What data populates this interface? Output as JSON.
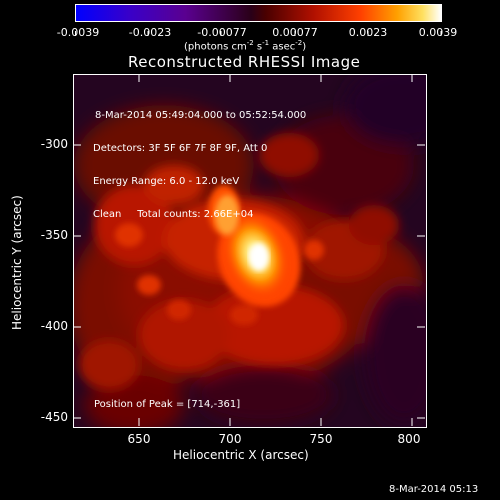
{
  "colorbar": {
    "ticks": [
      "-0.0039",
      "-0.0023",
      "-0.00077",
      "0.00077",
      "0.0023",
      "0.0039"
    ],
    "units_prefix": "(photons cm",
    "units_e1": "-2",
    "units_mid": " s",
    "units_e2": "-1",
    "units_mid2": " asec",
    "units_e3": "-2",
    "units_suffix": ")"
  },
  "title": "Reconstructed RHESSI Image",
  "info": {
    "line1": "8-Mar-2014 05:49:04.000 to 05:52:54.000",
    "line2": "Detectors: 3F 5F 6F 7F 8F 9F, Att 0",
    "line3": "Energy Range: 6.0 - 12.0 keV",
    "line4": "Clean     Total counts: 2.66E+04"
  },
  "peak_label": "Position of Peak = [714,-361]",
  "x_axis": {
    "label": "Heliocentric X (arcsec)",
    "ticks": [
      "650",
      "700",
      "750",
      "800"
    ]
  },
  "y_axis": {
    "label": "Heliocentric Y (arcsec)",
    "ticks": [
      "-300",
      "-350",
      "-400",
      "-450"
    ]
  },
  "footer_timestamp": "8-Mar-2014 05:13"
}
